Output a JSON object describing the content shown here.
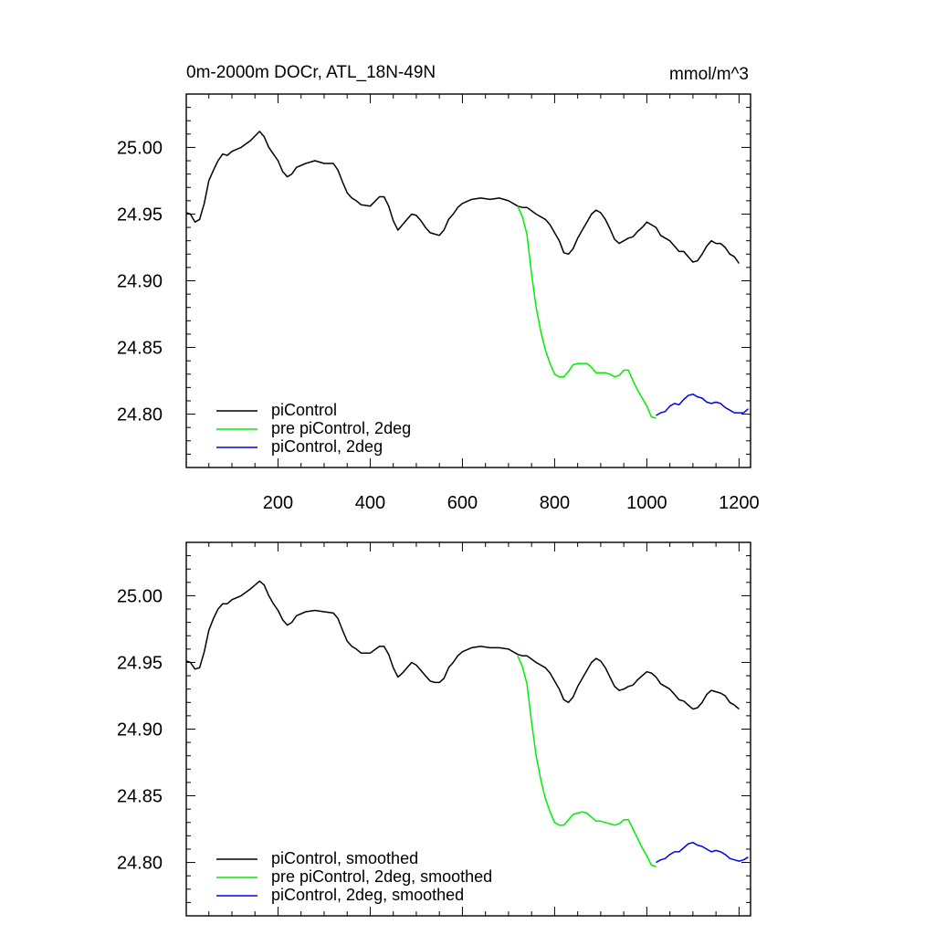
{
  "title": "0m-2000m DOCr, ATL_18N-49N",
  "units": "mmol/m^3",
  "chart_data": [
    {
      "type": "line",
      "xlim": [
        1,
        1225
      ],
      "ylim": [
        24.76,
        25.04
      ],
      "x_ticks": [
        200,
        400,
        600,
        800,
        1000,
        1200
      ],
      "x_tick_labels": [
        "200",
        "400",
        "600",
        "800",
        "1000",
        "1200"
      ],
      "y_ticks": [
        24.8,
        24.85,
        24.9,
        24.95,
        25.0
      ],
      "y_tick_labels": [
        "24.80",
        "24.85",
        "24.90",
        "24.95",
        "25.00"
      ],
      "legend_position": "bottom-left",
      "legend": [
        "piControl",
        "pre piControl, 2deg",
        "piControl, 2deg"
      ],
      "series": [
        {
          "name": "piControl",
          "color": "#000000",
          "x": [
            1,
            10,
            20,
            30,
            40,
            50,
            60,
            70,
            80,
            90,
            100,
            120,
            140,
            160,
            170,
            180,
            190,
            200,
            210,
            220,
            230,
            240,
            260,
            280,
            300,
            320,
            330,
            340,
            350,
            360,
            370,
            380,
            400,
            420,
            430,
            440,
            450,
            460,
            470,
            480,
            490,
            500,
            510,
            520,
            530,
            540,
            550,
            560,
            570,
            580,
            590,
            600,
            620,
            640,
            660,
            680,
            700,
            720,
            730,
            740,
            760,
            780,
            790,
            800,
            810,
            820,
            830,
            840,
            850,
            860,
            870,
            880,
            890,
            900,
            910,
            920,
            930,
            940,
            950,
            960,
            970,
            980,
            990,
            1000,
            1010,
            1020,
            1030,
            1040,
            1050,
            1060,
            1070,
            1080,
            1090,
            1100,
            1110,
            1120,
            1130,
            1140,
            1150,
            1160,
            1170,
            1180,
            1190,
            1200
          ],
          "y": [
            24.951,
            24.95,
            24.944,
            24.946,
            24.958,
            24.975,
            24.983,
            24.99,
            24.995,
            24.994,
            24.997,
            25.0,
            25.005,
            25.012,
            25.008,
            25.0,
            24.995,
            24.99,
            24.982,
            24.978,
            24.98,
            24.985,
            24.988,
            24.99,
            24.988,
            24.988,
            24.983,
            24.974,
            24.966,
            24.962,
            24.96,
            24.957,
            24.956,
            24.963,
            24.963,
            24.956,
            24.945,
            24.938,
            24.942,
            24.946,
            24.95,
            24.949,
            24.945,
            24.94,
            24.936,
            24.935,
            24.934,
            24.938,
            24.946,
            24.95,
            24.955,
            24.958,
            24.961,
            24.962,
            24.961,
            24.962,
            24.96,
            24.956,
            24.955,
            24.955,
            24.95,
            24.946,
            24.942,
            24.936,
            24.93,
            24.921,
            24.92,
            24.924,
            24.932,
            24.938,
            24.944,
            24.95,
            24.953,
            24.951,
            24.946,
            24.939,
            24.931,
            24.928,
            24.93,
            24.932,
            24.933,
            24.937,
            24.94,
            24.944,
            24.942,
            24.94,
            24.934,
            24.932,
            24.93,
            24.926,
            24.922,
            24.922,
            24.918,
            24.914,
            24.915,
            24.92,
            24.926,
            24.93,
            24.928,
            24.928,
            24.925,
            24.92,
            24.918,
            24.913
          ]
        },
        {
          "name": "pre piControl, 2deg",
          "color": "#00ee00",
          "x": [
            720,
            730,
            740,
            750,
            760,
            770,
            780,
            790,
            800,
            810,
            820,
            830,
            840,
            850,
            860,
            870,
            880,
            890,
            900,
            910,
            920,
            930,
            940,
            950,
            960,
            970,
            980,
            990,
            1000,
            1010,
            1020
          ],
          "y": [
            24.956,
            24.948,
            24.935,
            24.905,
            24.88,
            24.862,
            24.848,
            24.838,
            24.83,
            24.828,
            24.828,
            24.832,
            24.837,
            24.838,
            24.838,
            24.838,
            24.835,
            24.831,
            24.831,
            24.831,
            24.83,
            24.828,
            24.829,
            24.833,
            24.833,
            24.825,
            24.818,
            24.812,
            24.806,
            24.798,
            24.797
          ]
        },
        {
          "name": "piControl, 2deg",
          "color": "#0000ee",
          "x": [
            1020,
            1030,
            1040,
            1050,
            1060,
            1070,
            1080,
            1090,
            1100,
            1110,
            1120,
            1130,
            1140,
            1150,
            1160,
            1170,
            1180,
            1190,
            1200,
            1210,
            1220
          ],
          "y": [
            24.799,
            24.801,
            24.802,
            24.806,
            24.808,
            24.807,
            24.811,
            24.814,
            24.815,
            24.813,
            24.812,
            24.809,
            24.808,
            24.809,
            24.808,
            24.805,
            24.803,
            24.801,
            24.801,
            24.801,
            24.804
          ]
        }
      ]
    },
    {
      "type": "line",
      "xlim": [
        1,
        1225
      ],
      "ylim": [
        24.76,
        25.04
      ],
      "x_ticks": [
        200,
        400,
        600,
        800,
        1000,
        1200
      ],
      "x_tick_labels": [],
      "y_ticks": [
        24.8,
        24.85,
        24.9,
        24.95,
        25.0
      ],
      "y_tick_labels": [
        "24.80",
        "24.85",
        "24.90",
        "24.95",
        "25.00"
      ],
      "legend_position": "bottom-left",
      "legend": [
        "piControl, smoothed",
        "pre piControl, 2deg, smoothed",
        "piControl, 2deg, smoothed"
      ],
      "series": [
        {
          "name": "piControl, smoothed",
          "color": "#000000",
          "x": [
            1,
            10,
            20,
            30,
            40,
            50,
            60,
            70,
            80,
            90,
            100,
            120,
            140,
            160,
            170,
            180,
            190,
            200,
            210,
            220,
            230,
            240,
            260,
            280,
            300,
            320,
            330,
            340,
            350,
            360,
            370,
            380,
            400,
            420,
            430,
            440,
            450,
            460,
            470,
            480,
            490,
            500,
            510,
            520,
            530,
            540,
            550,
            560,
            570,
            580,
            590,
            600,
            620,
            640,
            660,
            680,
            700,
            720,
            730,
            740,
            760,
            780,
            790,
            800,
            810,
            820,
            830,
            840,
            850,
            860,
            870,
            880,
            890,
            900,
            910,
            920,
            930,
            940,
            950,
            960,
            970,
            980,
            990,
            1000,
            1010,
            1020,
            1030,
            1040,
            1050,
            1060,
            1070,
            1080,
            1090,
            1100,
            1110,
            1120,
            1130,
            1140,
            1150,
            1160,
            1170,
            1180,
            1190,
            1200
          ],
          "y": [
            24.951,
            24.95,
            24.945,
            24.946,
            24.958,
            24.974,
            24.983,
            24.99,
            24.994,
            24.994,
            24.997,
            25.0,
            25.005,
            25.011,
            25.008,
            25.0,
            24.994,
            24.989,
            24.982,
            24.978,
            24.98,
            24.985,
            24.988,
            24.989,
            24.988,
            24.987,
            24.983,
            24.974,
            24.966,
            24.962,
            24.96,
            24.957,
            24.957,
            24.962,
            24.962,
            24.956,
            24.946,
            24.939,
            24.942,
            24.946,
            24.95,
            24.948,
            24.944,
            24.94,
            24.936,
            24.935,
            24.935,
            24.938,
            24.946,
            24.95,
            24.955,
            24.958,
            24.961,
            24.962,
            24.961,
            24.961,
            24.96,
            24.956,
            24.955,
            24.955,
            24.95,
            24.946,
            24.942,
            24.936,
            24.93,
            24.922,
            24.92,
            24.924,
            24.932,
            24.938,
            24.944,
            24.95,
            24.953,
            24.951,
            24.946,
            24.939,
            24.932,
            24.929,
            24.93,
            24.932,
            24.933,
            24.937,
            24.94,
            24.943,
            24.942,
            24.939,
            24.934,
            24.932,
            24.93,
            24.926,
            24.922,
            24.921,
            24.918,
            24.915,
            24.916,
            24.92,
            24.926,
            24.929,
            24.928,
            24.927,
            24.925,
            24.92,
            24.918,
            24.915
          ]
        },
        {
          "name": "pre piControl, 2deg, smoothed",
          "color": "#00ee00",
          "x": [
            720,
            730,
            740,
            750,
            760,
            770,
            780,
            790,
            800,
            810,
            820,
            830,
            840,
            850,
            860,
            870,
            880,
            890,
            900,
            910,
            920,
            930,
            940,
            950,
            960,
            970,
            980,
            990,
            1000,
            1010,
            1020
          ],
          "y": [
            24.955,
            24.947,
            24.934,
            24.905,
            24.88,
            24.862,
            24.848,
            24.838,
            24.83,
            24.828,
            24.828,
            24.832,
            24.836,
            24.837,
            24.838,
            24.837,
            24.834,
            24.831,
            24.831,
            24.83,
            24.829,
            24.828,
            24.829,
            24.832,
            24.832,
            24.825,
            24.818,
            24.811,
            24.805,
            24.798,
            24.797
          ]
        },
        {
          "name": "piControl, 2deg, smoothed",
          "color": "#0000ee",
          "x": [
            1020,
            1030,
            1040,
            1050,
            1060,
            1070,
            1080,
            1090,
            1100,
            1110,
            1120,
            1130,
            1140,
            1150,
            1160,
            1170,
            1180,
            1190,
            1200,
            1210,
            1220
          ],
          "y": [
            24.8,
            24.802,
            24.803,
            24.806,
            24.808,
            24.808,
            24.811,
            24.814,
            24.815,
            24.813,
            24.812,
            24.81,
            24.808,
            24.809,
            24.808,
            24.806,
            24.803,
            24.802,
            24.801,
            24.802,
            24.804
          ]
        }
      ]
    }
  ]
}
